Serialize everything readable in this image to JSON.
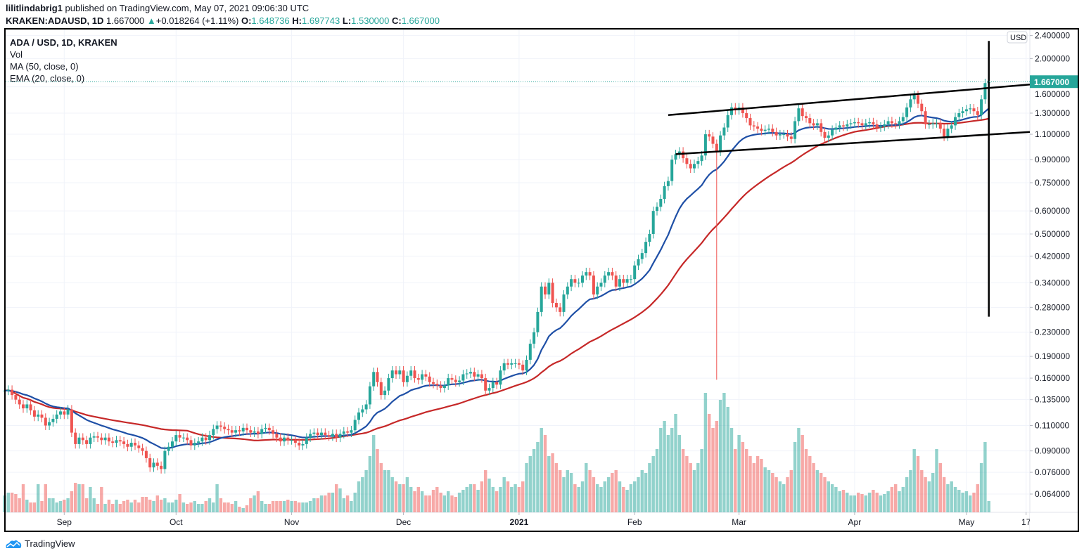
{
  "header": {
    "author": "lilitlindabrig1",
    "published": "published on TradingView.com, May 07, 2021 09:06:30 UTC",
    "symbol": "KRAKEN:ADAUSD, 1D",
    "last": "1.667000",
    "change": "+0.018264 (+1.11%)",
    "o_label": "O:",
    "o": "1.648736",
    "h_label": "H:",
    "h": "1.697743",
    "l_label": "L:",
    "l": "1.530000",
    "c_label": "C:",
    "c": "1.667000"
  },
  "legend": {
    "title": "ADA / USD, 1D, KRAKEN",
    "vol": "Vol",
    "ma": "MA (50, close, 0)",
    "ema": "EMA (20, close, 0)"
  },
  "footer": {
    "brand": "TradingView"
  },
  "colors": {
    "up": "#26a69a",
    "down": "#ef5350",
    "ma50": "#c62828",
    "ema20": "#1e4fa6",
    "brand": "#2196f3"
  },
  "chart_data": {
    "type": "candlestick",
    "scale": "log",
    "currency": "USD",
    "last_price_label": "1.667000",
    "start_date": "2020-08-16",
    "closes": [
      0.145,
      0.146,
      0.14,
      0.135,
      0.13,
      0.126,
      0.13,
      0.124,
      0.118,
      0.12,
      0.117,
      0.11,
      0.113,
      0.116,
      0.12,
      0.123,
      0.12,
      0.125,
      0.104,
      0.095,
      0.1,
      0.098,
      0.095,
      0.1,
      0.101,
      0.1,
      0.098,
      0.1,
      0.097,
      0.096,
      0.098,
      0.097,
      0.095,
      0.093,
      0.096,
      0.094,
      0.092,
      0.09,
      0.085,
      0.079,
      0.082,
      0.08,
      0.078,
      0.09,
      0.093,
      0.097,
      0.102,
      0.1,
      0.1,
      0.098,
      0.094,
      0.096,
      0.097,
      0.1,
      0.098,
      0.102,
      0.107,
      0.11,
      0.109,
      0.107,
      0.106,
      0.104,
      0.106,
      0.105,
      0.108,
      0.106,
      0.104,
      0.105,
      0.103,
      0.107,
      0.108,
      0.106,
      0.103,
      0.1,
      0.097,
      0.1,
      0.098,
      0.098,
      0.096,
      0.094,
      0.095,
      0.1,
      0.103,
      0.104,
      0.102,
      0.104,
      0.102,
      0.101,
      0.103,
      0.1,
      0.103,
      0.105,
      0.104,
      0.106,
      0.115,
      0.122,
      0.125,
      0.13,
      0.15,
      0.168,
      0.155,
      0.14,
      0.145,
      0.16,
      0.17,
      0.165,
      0.17,
      0.155,
      0.163,
      0.17,
      0.16,
      0.158,
      0.165,
      0.162,
      0.155,
      0.153,
      0.151,
      0.148,
      0.151,
      0.16,
      0.158,
      0.155,
      0.157,
      0.165,
      0.166,
      0.168,
      0.162,
      0.165,
      0.16,
      0.145,
      0.148,
      0.155,
      0.152,
      0.17,
      0.18,
      0.178,
      0.18,
      0.18,
      0.178,
      0.17,
      0.185,
      0.21,
      0.23,
      0.27,
      0.33,
      0.31,
      0.34,
      0.29,
      0.28,
      0.27,
      0.31,
      0.33,
      0.35,
      0.34,
      0.34,
      0.36,
      0.37,
      0.36,
      0.31,
      0.33,
      0.34,
      0.36,
      0.37,
      0.36,
      0.33,
      0.35,
      0.34,
      0.35,
      0.35,
      0.39,
      0.41,
      0.43,
      0.47,
      0.5,
      0.6,
      0.62,
      0.66,
      0.73,
      0.76,
      0.9,
      0.94,
      0.96,
      0.91,
      0.87,
      0.84,
      0.87,
      0.89,
      0.93,
      1.1,
      1.08,
      1.02,
      0.96,
      1.09,
      1.16,
      1.28,
      1.36,
      1.33,
      1.36,
      1.3,
      1.25,
      1.18,
      1.17,
      1.15,
      1.13,
      1.14,
      1.15,
      1.12,
      1.09,
      1.1,
      1.1,
      1.08,
      1.06,
      1.22,
      1.35,
      1.27,
      1.25,
      1.2,
      1.18,
      1.2,
      1.12,
      1.07,
      1.09,
      1.14,
      1.16,
      1.18,
      1.17,
      1.19,
      1.2,
      1.21,
      1.2,
      1.18,
      1.2,
      1.21,
      1.19,
      1.16,
      1.17,
      1.19,
      1.22,
      1.2,
      1.19,
      1.22,
      1.26,
      1.36,
      1.45,
      1.5,
      1.4,
      1.32,
      1.19,
      1.19,
      1.2,
      1.2,
      1.15,
      1.08,
      1.15,
      1.18,
      1.26,
      1.3,
      1.32,
      1.34,
      1.35,
      1.32,
      1.28,
      1.45,
      1.648736,
      1.667
    ],
    "volume_relative": [
      12,
      14,
      14,
      13,
      10,
      20,
      9,
      7,
      7,
      20,
      8,
      20,
      10,
      10,
      7,
      8,
      9,
      10,
      15,
      21,
      20,
      20,
      10,
      18,
      10,
      6,
      18,
      6,
      9,
      6,
      9,
      6,
      8,
      9,
      7,
      9,
      7,
      11,
      11,
      9,
      8,
      12,
      9,
      10,
      7,
      7,
      9,
      13,
      7,
      6,
      7,
      8,
      6,
      6,
      8,
      10,
      7,
      20,
      10,
      7,
      7,
      6,
      8,
      4,
      3,
      5,
      10,
      12,
      15,
      8,
      6,
      6,
      8,
      8,
      8,
      8,
      9,
      8,
      8,
      7,
      7,
      7,
      8,
      10,
      10,
      12,
      12,
      14,
      14,
      20,
      17,
      10,
      12,
      8,
      14,
      22,
      25,
      30,
      40,
      55,
      45,
      35,
      30,
      30,
      25,
      22,
      20,
      20,
      25,
      18,
      15,
      18,
      15,
      12,
      12,
      16,
      18,
      14,
      12,
      15,
      12,
      11,
      14,
      16,
      18,
      20,
      20,
      16,
      22,
      30,
      24,
      18,
      15,
      18,
      25,
      22,
      18,
      20,
      18,
      22,
      35,
      40,
      45,
      50,
      60,
      55,
      40,
      42,
      35,
      30,
      25,
      30,
      28,
      20,
      18,
      22,
      35,
      30,
      25,
      20,
      18,
      22,
      25,
      28,
      30,
      22,
      18,
      16,
      20,
      22,
      25,
      30,
      28,
      35,
      40,
      45,
      60,
      65,
      55,
      60,
      70,
      55,
      45,
      40,
      35,
      30,
      35,
      45,
      85,
      70,
      60,
      65,
      80,
      85,
      75,
      60,
      45,
      55,
      50,
      45,
      40,
      35,
      40,
      38,
      32,
      30,
      28,
      25,
      22,
      20,
      25,
      30,
      50,
      60,
      55,
      45,
      40,
      35,
      30,
      28,
      25,
      22,
      20,
      18,
      15,
      16,
      14,
      12,
      12,
      14,
      13,
      12,
      14,
      16,
      14,
      12,
      13,
      15,
      18,
      20,
      15,
      18,
      25,
      30,
      45,
      40,
      30,
      25,
      22,
      28,
      45,
      35,
      25,
      20,
      22,
      18,
      16,
      14,
      15,
      12,
      14,
      20,
      35,
      50,
      8
    ],
    "notable_wicks": [
      {
        "date": "2021-02-23",
        "low": 0.158
      }
    ],
    "indicators": [
      {
        "name": "MA (50, close, 0)",
        "period": 50
      },
      {
        "name": "EMA (20, close, 0)",
        "period": 20
      }
    ],
    "y_ticks": [
      "2.400000",
      "2.000000",
      "1.600000",
      "1.300000",
      "1.100000",
      "0.900000",
      "0.750000",
      "0.600000",
      "0.500000",
      "0.420000",
      "0.340000",
      "0.280000",
      "0.230000",
      "0.190000",
      "0.160000",
      "0.135000",
      "0.110000",
      "0.090000",
      "0.076000",
      "0.064000"
    ],
    "x_ticks": [
      {
        "label": "Sep",
        "date": "2020-09-01"
      },
      {
        "label": "Oct",
        "date": "2020-10-01"
      },
      {
        "label": "Nov",
        "date": "2020-11-01"
      },
      {
        "label": "Dec",
        "date": "2020-12-01"
      },
      {
        "label": "2021",
        "date": "2021-01-01",
        "bold": true
      },
      {
        "label": "Feb",
        "date": "2021-02-01"
      },
      {
        "label": "Mar",
        "date": "2021-03-01"
      },
      {
        "label": "Apr",
        "date": "2021-04-01"
      },
      {
        "label": "May",
        "date": "2021-05-01"
      },
      {
        "label": "17",
        "date": "2021-05-17"
      }
    ],
    "drawings": [
      {
        "name": "upper-channel-line",
        "from": [
          "2021-02-10",
          1.28
        ],
        "to": [
          "2021-05-18",
          1.63
        ]
      },
      {
        "name": "lower-channel-line",
        "from": [
          "2021-02-12",
          0.94
        ],
        "to": [
          "2021-05-18",
          1.12
        ]
      },
      {
        "name": "vertical-marker-line",
        "from": [
          "2021-05-07",
          2.3
        ],
        "to": [
          "2021-05-07",
          0.26
        ]
      }
    ],
    "grid": true
  }
}
